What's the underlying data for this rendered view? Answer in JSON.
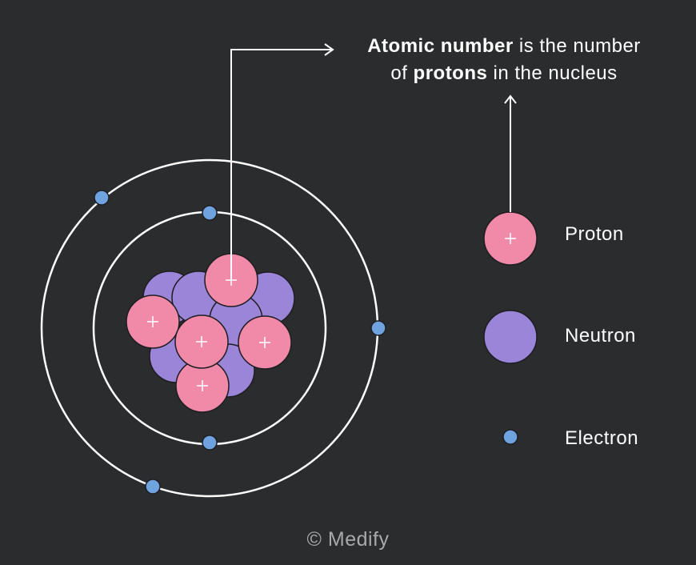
{
  "caption": {
    "line1": {
      "bold": "Atomic number",
      "rest": "is the number"
    },
    "line2": {
      "start": "of",
      "bold": "protons",
      "rest": "in the nucleus"
    }
  },
  "legend": {
    "items": [
      {
        "label": "Proton"
      },
      {
        "label": "Neutron"
      },
      {
        "label": "Electron"
      }
    ]
  },
  "footer": {
    "copyright": "© Medify"
  }
}
